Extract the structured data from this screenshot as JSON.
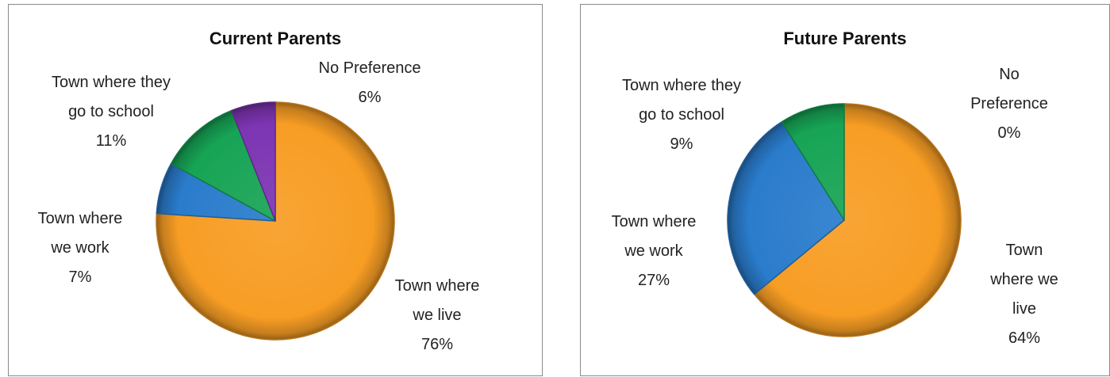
{
  "colors": {
    "live": "#f79d24",
    "work": "#2a7ccc",
    "school": "#17a455",
    "none": "#7d35b3"
  },
  "chart_data": [
    {
      "type": "pie",
      "title": "Current Parents",
      "slices": [
        {
          "key": "live",
          "name": "Town where we live",
          "value": 76,
          "label": [
            "Town where",
            "we live",
            "76%"
          ]
        },
        {
          "key": "work",
          "name": "Town where we work",
          "value": 7,
          "label": [
            "Town where",
            "we work",
            "7%"
          ]
        },
        {
          "key": "school",
          "name": "Town where they go to school",
          "value": 11,
          "label": [
            "Town where they",
            "go to school",
            "11%"
          ]
        },
        {
          "key": "none",
          "name": "No Preference",
          "value": 6,
          "label": [
            "No Preference",
            "6%"
          ]
        }
      ]
    },
    {
      "type": "pie",
      "title": "Future Parents",
      "slices": [
        {
          "key": "live",
          "name": "Town where we live",
          "value": 64,
          "label": [
            "Town",
            "where we",
            "live",
            "64%"
          ]
        },
        {
          "key": "work",
          "name": "Town where we work",
          "value": 27,
          "label": [
            "Town where",
            "we work",
            "27%"
          ]
        },
        {
          "key": "school",
          "name": "Town where they go to school",
          "value": 9,
          "label": [
            "Town where they",
            "go to school",
            "9%"
          ]
        },
        {
          "key": "none",
          "name": "No Preference",
          "value": 0,
          "label": [
            "No",
            "Preference",
            "0%"
          ]
        }
      ]
    }
  ]
}
